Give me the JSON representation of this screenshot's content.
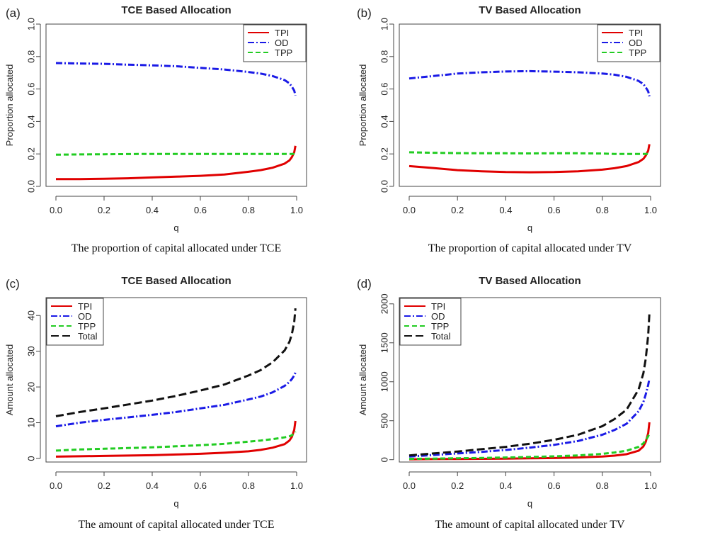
{
  "colors": {
    "TPI": "#e00000",
    "OD": "#1a1ae6",
    "TPP": "#22cc22",
    "Total": "#111111",
    "axis": "#444444",
    "text": "#222222"
  },
  "chart_data": [
    {
      "panel_label": "(a)",
      "type": "line",
      "title": "TCE Based Allocation",
      "xlabel": "q",
      "ylabel": "Proportion allocated",
      "caption": "The proportion of capital allocated under TCE",
      "xlim": [
        0,
        1
      ],
      "ylim": [
        0,
        1
      ],
      "xticks": [
        "0.0",
        "0.2",
        "0.4",
        "0.6",
        "0.8",
        "1.0"
      ],
      "yticks": [
        "0.0",
        "0.2",
        "0.4",
        "0.6",
        "0.8",
        "1.0"
      ],
      "grid": false,
      "legend": "top-right",
      "x": [
        0.0,
        0.1,
        0.2,
        0.3,
        0.4,
        0.5,
        0.6,
        0.7,
        0.8,
        0.85,
        0.9,
        0.95,
        0.97,
        0.98,
        0.99,
        0.995
      ],
      "series": [
        {
          "name": "TPI",
          "values": [
            0.045,
            0.045,
            0.047,
            0.05,
            0.055,
            0.06,
            0.065,
            0.073,
            0.09,
            0.1,
            0.115,
            0.14,
            0.16,
            0.18,
            0.21,
            0.25
          ]
        },
        {
          "name": "OD",
          "values": [
            0.76,
            0.757,
            0.755,
            0.75,
            0.746,
            0.74,
            0.73,
            0.72,
            0.705,
            0.695,
            0.68,
            0.655,
            0.635,
            0.615,
            0.59,
            0.56
          ]
        },
        {
          "name": "TPP",
          "values": [
            0.195,
            0.197,
            0.198,
            0.199,
            0.2,
            0.2,
            0.2,
            0.2,
            0.2,
            0.2,
            0.2,
            0.2,
            0.2,
            0.2,
            0.2,
            0.2
          ]
        }
      ]
    },
    {
      "panel_label": "(b)",
      "type": "line",
      "title": "TV Based Allocation",
      "xlabel": "q",
      "ylabel": "Proportion allocated",
      "caption": "The proportion of capital allocated under TV",
      "xlim": [
        0,
        1
      ],
      "ylim": [
        0,
        1
      ],
      "xticks": [
        "0.0",
        "0.2",
        "0.4",
        "0.6",
        "0.8",
        "1.0"
      ],
      "yticks": [
        "0.0",
        "0.2",
        "0.4",
        "0.6",
        "0.8",
        "1.0"
      ],
      "grid": false,
      "legend": "top-right",
      "x": [
        0.0,
        0.1,
        0.2,
        0.3,
        0.4,
        0.5,
        0.6,
        0.7,
        0.8,
        0.85,
        0.9,
        0.95,
        0.97,
        0.98,
        0.99,
        0.995
      ],
      "series": [
        {
          "name": "TPI",
          "values": [
            0.125,
            0.113,
            0.1,
            0.093,
            0.088,
            0.087,
            0.088,
            0.093,
            0.103,
            0.112,
            0.125,
            0.15,
            0.17,
            0.19,
            0.22,
            0.26
          ]
        },
        {
          "name": "OD",
          "values": [
            0.665,
            0.68,
            0.695,
            0.703,
            0.708,
            0.71,
            0.707,
            0.703,
            0.695,
            0.688,
            0.675,
            0.65,
            0.63,
            0.61,
            0.585,
            0.555
          ]
        },
        {
          "name": "TPP",
          "values": [
            0.21,
            0.207,
            0.205,
            0.204,
            0.204,
            0.203,
            0.204,
            0.204,
            0.202,
            0.2,
            0.2,
            0.2,
            0.2,
            0.2,
            0.2,
            0.19
          ]
        }
      ]
    },
    {
      "panel_label": "(c)",
      "type": "line",
      "title": "TCE Based Allocation",
      "xlabel": "q",
      "ylabel": "Amount allocated",
      "caption": "The amount of capital allocated under TCE",
      "xlim": [
        0,
        1
      ],
      "ylim": [
        -1,
        45
      ],
      "xticks": [
        "0.0",
        "0.2",
        "0.4",
        "0.6",
        "0.8",
        "1.0"
      ],
      "yticks": [
        "0",
        "10",
        "20",
        "30",
        "40"
      ],
      "grid": false,
      "legend": "top-left",
      "x": [
        0.0,
        0.1,
        0.2,
        0.3,
        0.4,
        0.5,
        0.6,
        0.7,
        0.8,
        0.85,
        0.9,
        0.95,
        0.97,
        0.98,
        0.99,
        0.995
      ],
      "series": [
        {
          "name": "TPI",
          "values": [
            0.5,
            0.6,
            0.7,
            0.8,
            0.9,
            1.1,
            1.3,
            1.6,
            2.0,
            2.4,
            3.0,
            4.0,
            5.0,
            6.0,
            8.0,
            10.5
          ]
        },
        {
          "name": "OD",
          "values": [
            9,
            10,
            10.8,
            11.5,
            12.2,
            13,
            14,
            15,
            16.5,
            17.3,
            18.5,
            20.3,
            21.4,
            22.2,
            23.2,
            24
          ]
        },
        {
          "name": "TPP",
          "values": [
            2.2,
            2.5,
            2.7,
            2.9,
            3.1,
            3.4,
            3.7,
            4.1,
            4.7,
            5.0,
            5.4,
            5.9,
            6.2,
            6.5,
            7.0,
            7.5
          ]
        },
        {
          "name": "Total",
          "values": [
            11.8,
            13,
            14,
            15.1,
            16.2,
            17.5,
            19,
            20.7,
            23.2,
            24.7,
            26.9,
            30.2,
            32.6,
            34.7,
            38.2,
            42
          ]
        }
      ]
    },
    {
      "panel_label": "(d)",
      "type": "line",
      "title": "TV Based Allocation",
      "xlabel": "q",
      "ylabel": "Amount allocated",
      "caption": "The amount of capital allocated under TV",
      "xlim": [
        0,
        1
      ],
      "ylim": [
        -30,
        2080
      ],
      "xticks": [
        "0.0",
        "0.2",
        "0.4",
        "0.6",
        "0.8",
        "1.0"
      ],
      "yticks": [
        "0",
        "500",
        "1000",
        "1500",
        "2000"
      ],
      "grid": false,
      "legend": "top-left",
      "x": [
        0.0,
        0.1,
        0.2,
        0.3,
        0.4,
        0.5,
        0.6,
        0.7,
        0.8,
        0.85,
        0.9,
        0.95,
        0.97,
        0.98,
        0.99,
        0.995
      ],
      "series": [
        {
          "name": "TPI",
          "values": [
            5,
            7,
            9,
            11,
            14,
            17,
            21,
            28,
            40,
            52,
            70,
            115,
            170,
            230,
            340,
            480
          ]
        },
        {
          "name": "OD",
          "values": [
            40,
            60,
            80,
            100,
            125,
            155,
            190,
            240,
            320,
            380,
            460,
            620,
            740,
            840,
            960,
            1040
          ]
        },
        {
          "name": "TPP",
          "values": [
            10,
            14,
            18,
            22,
            28,
            35,
            43,
            55,
            75,
            92,
            115,
            165,
            210,
            250,
            300,
            340
          ]
        },
        {
          "name": "Total",
          "values": [
            55,
            80,
            105,
            135,
            165,
            205,
            255,
            320,
            430,
            520,
            640,
            900,
            1110,
            1300,
            1600,
            1880
          ]
        }
      ]
    }
  ]
}
